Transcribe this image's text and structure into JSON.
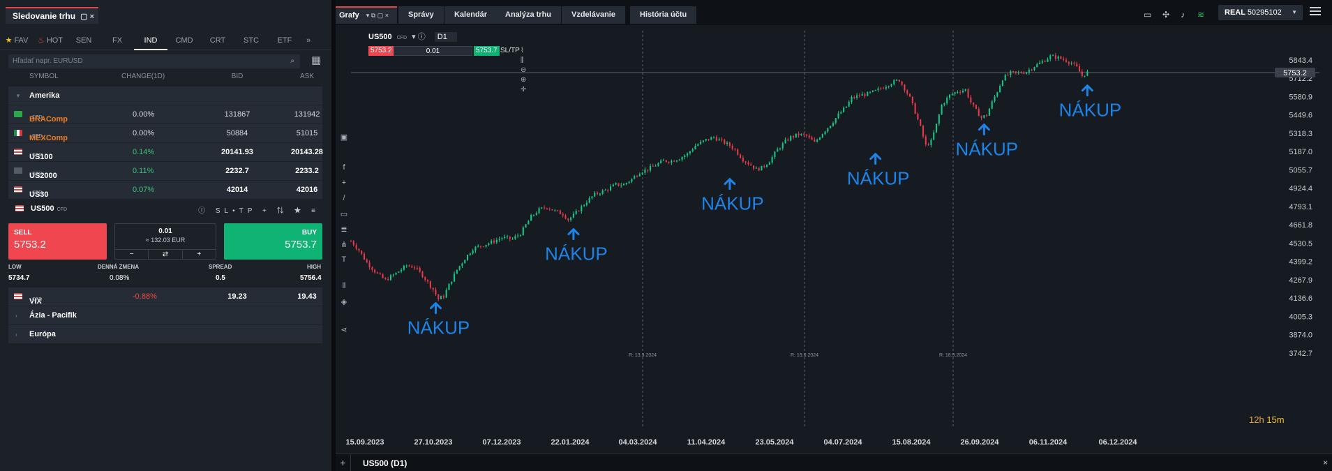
{
  "watchlist": {
    "title": "Sledovanie trhu",
    "categories": [
      "FAV",
      "HOT",
      "SEN",
      "FX",
      "IND",
      "CMD",
      "CRT",
      "STC",
      "ETF"
    ],
    "active_category": "IND",
    "search_placeholder": "Hľadať napr. EURUSD",
    "columns": [
      "SYMBOL",
      "CHANGE(1D)",
      "BID",
      "ASK"
    ],
    "group_america": "Amerika",
    "group_asia": "Ázia - Pacifik",
    "group_europe": "Európa",
    "cfd_tag": "CFD",
    "rows": [
      {
        "symbol": "BRAComp",
        "change": "0.00%",
        "bid": "131867",
        "ask": "131942",
        "flag_color": "#2ba84a"
      },
      {
        "symbol": "MEXComp",
        "change": "0.00%",
        "bid": "50884",
        "ask": "51015",
        "flag_color": "#1f8b4c"
      },
      {
        "symbol": "US100",
        "change": "0.14%",
        "bid": "20141.93",
        "ask": "20143.28",
        "flag_color": "#c94b4b"
      },
      {
        "symbol": "US2000",
        "change": "0.11%",
        "bid": "2232.7",
        "ask": "2233.2",
        "flag_color": "#555c66"
      },
      {
        "symbol": "US30",
        "change": "0.07%",
        "bid": "42014",
        "ask": "42016",
        "flag_color": "#c94b4b"
      }
    ],
    "selected": {
      "symbol": "US500",
      "tools": "SL•TP",
      "sell_label": "SELL",
      "sell_price": "5753.2",
      "buy_label": "BUY",
      "buy_price": "5753.7",
      "volume": "0.01",
      "volume_value": "≈ 132.03 EUR",
      "stats": {
        "low_label": "LOW",
        "low": "5734.7",
        "daily_label": "DENNÁ ZMENA",
        "daily": "0.08%",
        "spread_label": "SPREAD",
        "spread": "0.5",
        "high_label": "HIGH",
        "high": "5756.4"
      }
    },
    "vix": {
      "symbol": "VIX",
      "change": "-0.88%",
      "bid": "19.23",
      "ask": "19.43"
    }
  },
  "topbar": {
    "grafy": "Grafy",
    "tabs": [
      "Správy",
      "Kalendár",
      "Analýza trhu",
      "Vzdelávanie",
      "História účtu"
    ],
    "account_type": "REAL",
    "account_number": "50295102"
  },
  "chart_header": {
    "symbol": "US500",
    "cfd": "CFD",
    "timeframe": "D1",
    "sell": "5753.2",
    "buy": "5753.7",
    "volume": "0.01",
    "sltp": "SL/TP"
  },
  "bottom": {
    "title": "US500 (D1)"
  },
  "colors": {
    "up": "#16c784",
    "down": "#e8394a",
    "accent": "#1c84e8",
    "sell": "#ef4650",
    "buy": "#0fb474"
  },
  "chart_data": {
    "type": "candlestick",
    "symbol": "US500",
    "timeframe": "D1",
    "current_price": "5753.2",
    "countdown_hours": "12h",
    "countdown_minutes": "15m",
    "y_ticks": [
      "5843.4",
      "5712.2",
      "5580.9",
      "5449.6",
      "5318.3",
      "5187.0",
      "5055.7",
      "4924.4",
      "4793.1",
      "4661.8",
      "4530.5",
      "4399.2",
      "4267.9",
      "4136.6",
      "4005.3",
      "3874.0",
      "3742.7"
    ],
    "x_ticks": [
      "15.09.2023",
      "27.10.2023",
      "07.12.2023",
      "22.01.2024",
      "04.03.2024",
      "11.04.2024",
      "23.05.2024",
      "04.07.2024",
      "15.08.2024",
      "26.09.2024",
      "06.11.2024",
      "06.12.2024"
    ],
    "rollover_labels": [
      "R: 13.3.2024",
      "R: 19.6.2024",
      "R: 18.9.2024"
    ],
    "close_path": [
      [
        0,
        4545
      ],
      [
        3,
        4480
      ],
      [
        6,
        4390
      ],
      [
        10,
        4310
      ],
      [
        13,
        4265
      ],
      [
        17,
        4315
      ],
      [
        21,
        4370
      ],
      [
        24,
        4360
      ],
      [
        27,
        4300
      ],
      [
        31,
        4200
      ],
      [
        33,
        4130
      ],
      [
        35,
        4150
      ],
      [
        37,
        4230
      ],
      [
        40,
        4340
      ],
      [
        43,
        4420
      ],
      [
        46,
        4490
      ],
      [
        48,
        4505
      ],
      [
        52,
        4530
      ],
      [
        57,
        4570
      ],
      [
        61,
        4560
      ],
      [
        64,
        4600
      ],
      [
        66,
        4660
      ],
      [
        68,
        4720
      ],
      [
        71,
        4770
      ],
      [
        74,
        4790
      ],
      [
        77,
        4760
      ],
      [
        80,
        4740
      ],
      [
        82,
        4700
      ],
      [
        84,
        4730
      ],
      [
        86,
        4770
      ],
      [
        89,
        4830
      ],
      [
        92,
        4880
      ],
      [
        96,
        4910
      ],
      [
        100,
        4950
      ],
      [
        103,
        4950
      ],
      [
        106,
        4990
      ],
      [
        109,
        5040
      ],
      [
        112,
        5060
      ],
      [
        115,
        5090
      ],
      [
        118,
        5120
      ],
      [
        121,
        5120
      ],
      [
        124,
        5140
      ],
      [
        127,
        5170
      ],
      [
        130,
        5230
      ],
      [
        134,
        5270
      ],
      [
        137,
        5290
      ],
      [
        140,
        5260
      ],
      [
        143,
        5230
      ],
      [
        145,
        5200
      ],
      [
        148,
        5130
      ],
      [
        151,
        5090
      ],
      [
        153,
        5060
      ],
      [
        155,
        5070
      ],
      [
        158,
        5120
      ],
      [
        161,
        5200
      ],
      [
        164,
        5260
      ],
      [
        166,
        5290
      ],
      [
        169,
        5310
      ],
      [
        172,
        5300
      ],
      [
        175,
        5250
      ],
      [
        178,
        5320
      ],
      [
        181,
        5380
      ],
      [
        184,
        5450
      ],
      [
        187,
        5510
      ],
      [
        189,
        5570
      ],
      [
        192,
        5590
      ],
      [
        195,
        5600
      ],
      [
        198,
        5620
      ],
      [
        201,
        5650
      ],
      [
        204,
        5680
      ],
      [
        207,
        5700
      ],
      [
        209,
        5640
      ],
      [
        211,
        5570
      ],
      [
        213,
        5470
      ],
      [
        215,
        5360
      ],
      [
        217,
        5230
      ],
      [
        219,
        5260
      ],
      [
        221,
        5380
      ],
      [
        223,
        5520
      ],
      [
        226,
        5590
      ],
      [
        229,
        5620
      ],
      [
        232,
        5630
      ],
      [
        234,
        5540
      ],
      [
        236,
        5480
      ],
      [
        238,
        5430
      ],
      [
        240,
        5450
      ],
      [
        242,
        5540
      ],
      [
        244,
        5620
      ],
      [
        246,
        5710
      ],
      [
        249,
        5750
      ],
      [
        252,
        5750
      ],
      [
        255,
        5760
      ],
      [
        258,
        5800
      ],
      [
        261,
        5830
      ],
      [
        264,
        5870
      ],
      [
        267,
        5860
      ],
      [
        270,
        5840
      ],
      [
        272,
        5820
      ],
      [
        274,
        5790
      ],
      [
        276,
        5730
      ],
      [
        278,
        5755
      ]
    ],
    "annotations": [
      {
        "text": "NÁKUP",
        "x": 32,
        "y": 4140
      },
      {
        "text": "NÁKUP",
        "x": 84,
        "y": 4670
      },
      {
        "text": "NÁKUP",
        "x": 143,
        "y": 5030
      },
      {
        "text": "NÁKUP",
        "x": 198,
        "y": 5210
      },
      {
        "text": "NÁKUP",
        "x": 239,
        "y": 5420
      },
      {
        "text": "NÁKUP",
        "x": 278,
        "y": 5700
      }
    ]
  }
}
